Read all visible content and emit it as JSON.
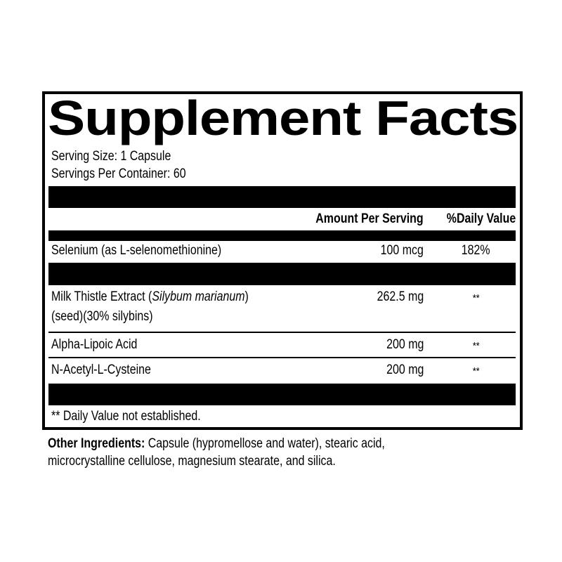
{
  "title": "Supplement Facts",
  "serving_size": "Serving Size: 1 Capsule",
  "servings_per_container": "Servings Per Container: 60",
  "header": {
    "amount": "Amount Per Serving",
    "dv": "%Daily Value"
  },
  "rows": [
    {
      "name": "Selenium (as L-selenomethionine)",
      "amount": "100 mcg",
      "dv": "182%"
    },
    {
      "name_prefix": "Milk Thistle Extract (",
      "name_italic": "Silybum marianum",
      "name_suffix": ")",
      "name_line2": "(seed)(30% silybins)",
      "amount": "262.5 mg",
      "dv": "**"
    },
    {
      "name": "Alpha-Lipoic Acid",
      "amount": "200 mg",
      "dv": "**"
    },
    {
      "name": "N-Acetyl-L-Cysteine",
      "amount": "200 mg",
      "dv": "**"
    }
  ],
  "footnote": "** Daily Value not established.",
  "other_ingredients": {
    "label": "Other Ingredients:",
    "line1": " Capsule (hypromellose and water), stearic acid,",
    "line2": "microcrystalline cellulose, magnesium stearate, and silica."
  }
}
